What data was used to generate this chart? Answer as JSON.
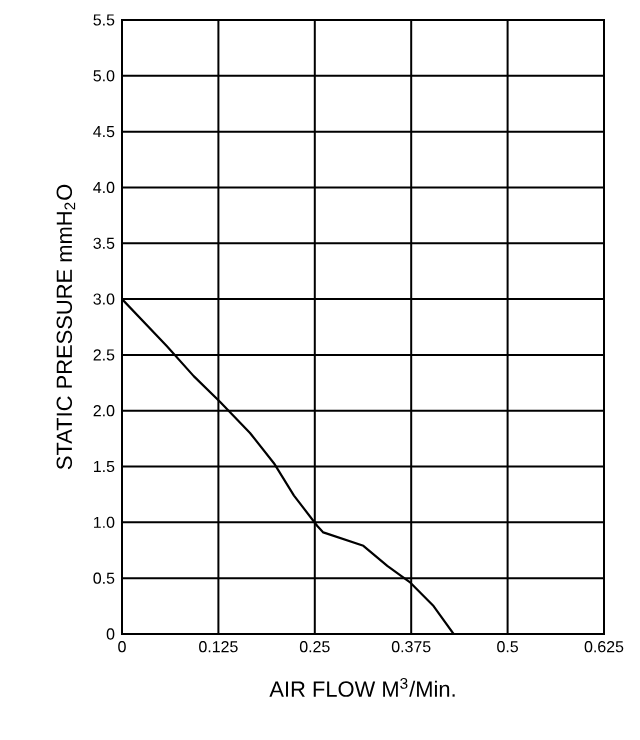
{
  "chart_data": {
    "type": "line",
    "xlabel": "AIR FLOW    M$^{3}$/Min.",
    "ylabel": "STATIC PRESSURE     mmH$_{2}$O",
    "xlim": [
      0,
      0.625
    ],
    "ylim": [
      0,
      5.5
    ],
    "xticks": [
      0,
      0.125,
      0.25,
      0.375,
      0.5,
      0.625
    ],
    "yticks": [
      0,
      {
        "value": 0.5,
        "label": "0.5"
      },
      {
        "value": 1,
        "label": "1.0"
      },
      {
        "value": 1.5,
        "label": "1.5"
      },
      {
        "value": 2,
        "label": "2.0"
      },
      {
        "value": 2.5,
        "label": "2.5"
      },
      {
        "value": 3,
        "label": "3.0"
      },
      {
        "value": 3.5,
        "label": "3.5"
      },
      {
        "value": 4,
        "label": "4.0"
      },
      {
        "value": 4.5,
        "label": "4.5"
      },
      {
        "value": 5,
        "label": "5.0"
      },
      {
        "value": 5.5,
        "label": "5.5"
      }
    ],
    "grid": true,
    "series": [
      {
        "color": "#000000",
        "x": [
          0,
          0.058,
          0.093,
          0.127,
          0.166,
          0.197,
          0.223,
          0.253,
          0.261,
          0.313,
          0.344,
          0.374,
          0.404,
          0.43
        ],
        "values": [
          3.0,
          2.58,
          2.31,
          2.08,
          1.8,
          1.53,
          1.24,
          0.97,
          0.91,
          0.79,
          0.61,
          0.46,
          0.25,
          0
        ]
      }
    ]
  }
}
